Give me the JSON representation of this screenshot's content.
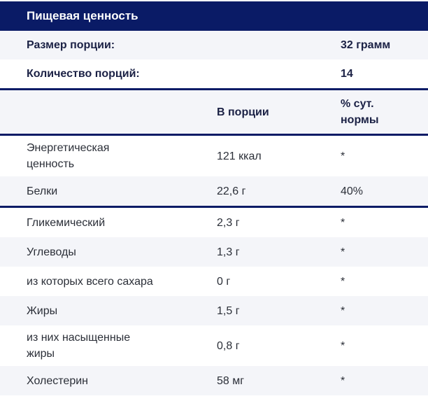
{
  "title": "Пищевая ценность",
  "serving": {
    "size_label": "Размер порции:",
    "size_value": "32 грамм",
    "count_label": "Количество порций:",
    "count_value": "14"
  },
  "columns": {
    "per_serving": "В порции",
    "daily_norm": "% сут. нормы"
  },
  "nutrients": [
    {
      "name": "Энергетическая ценность",
      "amount": "121 ккал",
      "daily": "*"
    },
    {
      "name": "Белки",
      "amount": "22,6 г",
      "daily": "40%"
    },
    {
      "name": "Гликемический",
      "amount": "2,3 г",
      "daily": "*"
    },
    {
      "name": "Углеводы",
      "amount": "1,3 г",
      "daily": "*"
    },
    {
      "name": "из которых всего сахара",
      "amount": "0 г",
      "daily": "*"
    },
    {
      "name": "Жиры",
      "amount": "1,5 г",
      "daily": "*"
    },
    {
      "name": "из них насыщенные жиры",
      "amount": "0,8 г",
      "daily": "*"
    },
    {
      "name": "Холестерин",
      "amount": "58 мг",
      "daily": "*"
    }
  ],
  "colors": {
    "header_bg": "#0a1b66",
    "divider": "#0a1b66",
    "row_alt_bg": "#f4f5f9",
    "row_bg": "#ffffff",
    "title_text": "#ffffff",
    "bold_text": "#1b2145",
    "body_text": "#2b2f38"
  }
}
